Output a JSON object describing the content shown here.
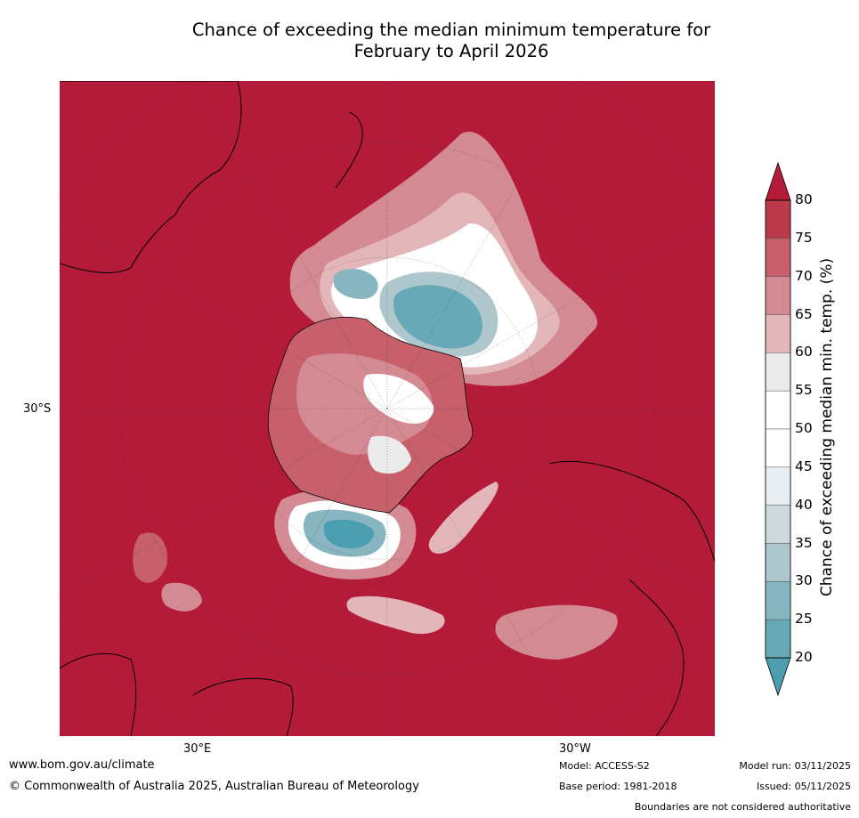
{
  "title_line1": "Chance of exceeding the median minimum temperature for",
  "title_line2": "February to April 2026",
  "graticule_labels": {
    "left_lat": "30°S",
    "bottom_lon_east": "30°E",
    "bottom_lon_west": "30°W"
  },
  "colorbar": {
    "label": "Chance of exceeding median min. temp. (%)",
    "ticks": [
      "80",
      "75",
      "70",
      "65",
      "60",
      "55",
      "50",
      "45",
      "40",
      "35",
      "30",
      "25",
      "20"
    ],
    "bins": [
      {
        "from": 75,
        "to": 80,
        "color": "#bb3a4a"
      },
      {
        "from": 70,
        "to": 75,
        "color": "#c7606b"
      },
      {
        "from": 65,
        "to": 70,
        "color": "#d48a92"
      },
      {
        "from": 60,
        "to": 65,
        "color": "#e3b6ba"
      },
      {
        "from": 55,
        "to": 60,
        "color": "#ebebeb"
      },
      {
        "from": 50,
        "to": 55,
        "color": "#ffffff"
      },
      {
        "from": 45,
        "to": 50,
        "color": "#ffffff"
      },
      {
        "from": 40,
        "to": 45,
        "color": "#e8eef1"
      },
      {
        "from": 35,
        "to": 40,
        "color": "#cfd9dc"
      },
      {
        "from": 30,
        "to": 35,
        "color": "#adc7cd"
      },
      {
        "from": 25,
        "to": 30,
        "color": "#88b6c0"
      },
      {
        "from": 20,
        "to": 25,
        "color": "#68a9b7"
      }
    ],
    "above_color": "#b31b38",
    "below_color": "#4b9eb0"
  },
  "background_color": "#b31b38",
  "footer": {
    "website": "www.bom.gov.au/climate",
    "copyright": "© Commonwealth of Australia 2025, Australian Bureau of Meteorology",
    "model": "Model: ACCESS-S2",
    "base_period": "Base period: 1981-2018",
    "model_run": "Model run: 03/11/2025",
    "issued": "Issued: 05/11/2025",
    "disclaimer": "Boundaries are not considered authoritative"
  }
}
